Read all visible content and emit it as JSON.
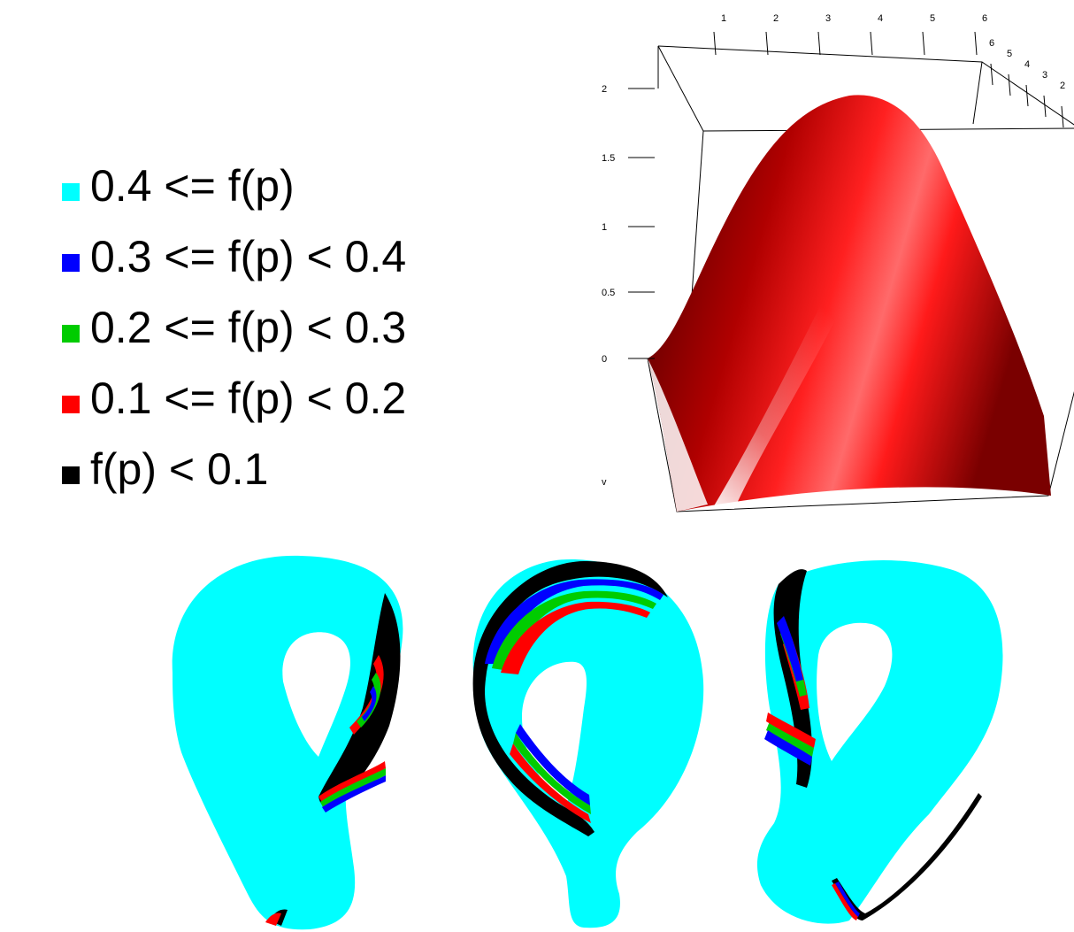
{
  "legend": {
    "items": [
      {
        "label": "0.4 <= f(p)",
        "color": "#00FFFF"
      },
      {
        "label": "0.3 <= f(p) < 0.4",
        "color": "#0000FF"
      },
      {
        "label": "0.2 <= f(p) < 0.3",
        "color": "#00CC00"
      },
      {
        "label": "0.1 <= f(p) < 0.2",
        "color": "#FF0000"
      },
      {
        "label": "f(p) < 0.1",
        "color": "#000000"
      }
    ]
  },
  "surface_plot": {
    "z_ticks": [
      "2",
      "1.5",
      "1",
      "0.5",
      "0"
    ],
    "z_axis_label": "v",
    "x_ticks": [
      "1",
      "2",
      "3",
      "4",
      "5",
      "6"
    ],
    "y_ticks": [
      "6",
      "5",
      "4",
      "3",
      "2"
    ],
    "surface_color": "#E00000"
  },
  "klein_bottles": {
    "count": 3,
    "base_color": "#00FFFF",
    "stripe_colors": [
      "#0000FF",
      "#00CC00",
      "#FF0000",
      "#000000"
    ]
  }
}
